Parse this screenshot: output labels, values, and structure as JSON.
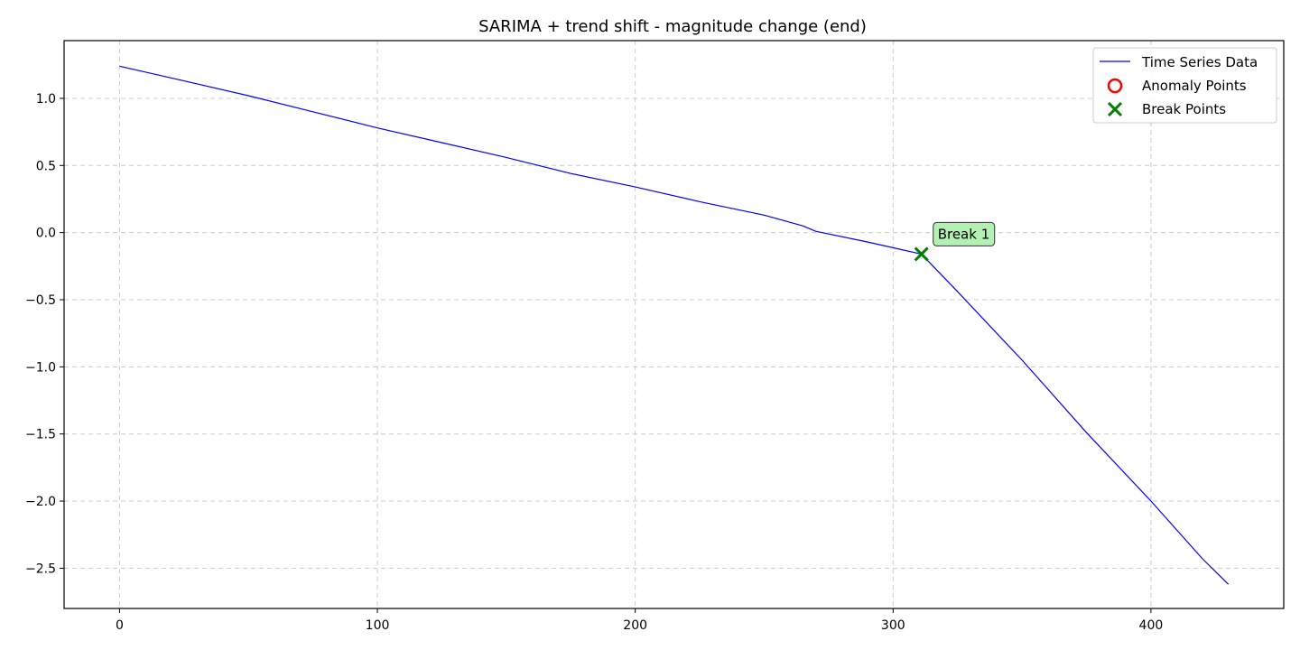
{
  "chart_data": {
    "type": "line",
    "title": "SARIMA + trend shift - magnitude change (end)",
    "xlabel": "",
    "ylabel": "",
    "xlim": [
      -21.5,
      451.5
    ],
    "ylim": [
      -2.8,
      1.43
    ],
    "xticks": [
      0,
      100,
      200,
      300,
      400
    ],
    "xtick_labels": [
      "0",
      "100",
      "200",
      "300",
      "400"
    ],
    "yticks": [
      1.0,
      0.5,
      0.0,
      -0.5,
      -1.0,
      -1.5,
      -2.0,
      -2.5
    ],
    "ytick_labels": [
      "1.0",
      "0.5",
      "0.0",
      "−0.5",
      "−1.0",
      "−1.5",
      "−2.0",
      "−2.5"
    ],
    "grid": true,
    "legend_placement": "top-right",
    "series": [
      {
        "name": "Time Series Data",
        "color": "#0000ff",
        "x": [
          0,
          25,
          50,
          75,
          100,
          125,
          150,
          175,
          200,
          225,
          250,
          265,
          270,
          290,
          311,
          325,
          350,
          375,
          400,
          420,
          430
        ],
        "y": [
          1.24,
          1.13,
          1.02,
          0.9,
          0.78,
          0.67,
          0.56,
          0.44,
          0.34,
          0.23,
          0.13,
          0.05,
          0.01,
          -0.07,
          -0.16,
          -0.44,
          -0.95,
          -1.49,
          -2.0,
          -2.43,
          -2.62
        ]
      }
    ],
    "anomaly_points": {
      "name": "Anomaly Points",
      "color": "#ff0000",
      "x": [],
      "y": []
    },
    "break_points": {
      "name": "Break Points",
      "color": "#008000",
      "x": [
        311
      ],
      "y": [
        -0.16
      ]
    },
    "annotations": [
      {
        "text": "Break 1",
        "x": 311,
        "y": -0.16,
        "box_color": "#b3f0b3"
      }
    ]
  }
}
